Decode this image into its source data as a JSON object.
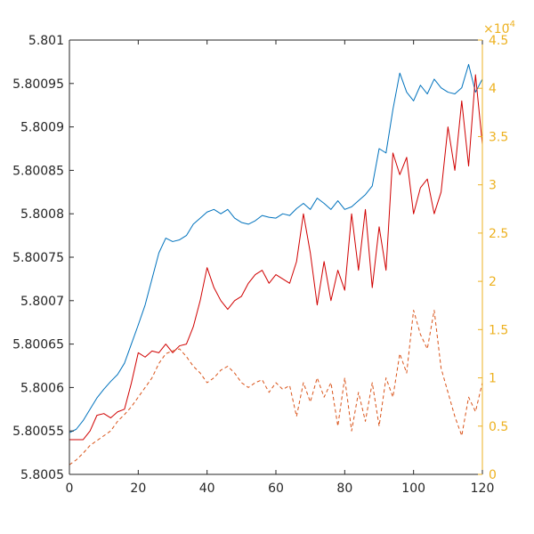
{
  "chart_data": {
    "type": "line",
    "grid": false,
    "legend": "none",
    "xlim": [
      0,
      120
    ],
    "x_ticks": [
      "0",
      "20",
      "40",
      "60",
      "80",
      "100",
      "120"
    ],
    "ylim_left": [
      5.8005,
      5.801
    ],
    "y_ticks_left": [
      "5.8005",
      "5.80055",
      "5.8006",
      "5.80065",
      "5.8007",
      "5.80075",
      "5.8008",
      "5.80085",
      "5.8009",
      "5.80095",
      "5.801"
    ],
    "ylim_right": [
      0,
      0.00045
    ],
    "y_ticks_right": [
      "0",
      "0.5",
      "1",
      "1.5",
      "2",
      "2.5",
      "3",
      "3.5",
      "4",
      "4.5"
    ],
    "right_axis_exponent": {
      "base": "×10",
      "power": "-4"
    },
    "colors": {
      "axis_left": "#262626",
      "axis_right": "#EDB120",
      "blue": "#0072BD",
      "red": "#D00000",
      "orange": "#D95319"
    },
    "series": [
      {
        "axis": "left",
        "style": "solid",
        "color": "#0072BD",
        "points": [
          [
            0,
            5.800548
          ],
          [
            2,
            5.800552
          ],
          [
            4,
            5.800562
          ],
          [
            6,
            5.800575
          ],
          [
            8,
            5.800588
          ],
          [
            10,
            5.800598
          ],
          [
            12,
            5.800607
          ],
          [
            14,
            5.800615
          ],
          [
            16,
            5.800628
          ],
          [
            18,
            5.80065
          ],
          [
            20,
            5.800672
          ],
          [
            22,
            5.800695
          ],
          [
            24,
            5.800725
          ],
          [
            26,
            5.800755
          ],
          [
            28,
            5.800772
          ],
          [
            30,
            5.800768
          ],
          [
            32,
            5.80077
          ],
          [
            34,
            5.800775
          ],
          [
            36,
            5.800788
          ],
          [
            38,
            5.800795
          ],
          [
            40,
            5.800802
          ],
          [
            42,
            5.800805
          ],
          [
            44,
            5.8008
          ],
          [
            46,
            5.800805
          ],
          [
            48,
            5.800795
          ],
          [
            50,
            5.80079
          ],
          [
            52,
            5.800788
          ],
          [
            54,
            5.800792
          ],
          [
            56,
            5.800798
          ],
          [
            58,
            5.800796
          ],
          [
            60,
            5.800795
          ],
          [
            62,
            5.8008
          ],
          [
            64,
            5.800798
          ],
          [
            66,
            5.800806
          ],
          [
            68,
            5.800812
          ],
          [
            70,
            5.800805
          ],
          [
            72,
            5.800818
          ],
          [
            74,
            5.800812
          ],
          [
            76,
            5.800805
          ],
          [
            78,
            5.800815
          ],
          [
            80,
            5.800805
          ],
          [
            82,
            5.800808
          ],
          [
            84,
            5.800815
          ],
          [
            86,
            5.800822
          ],
          [
            88,
            5.800832
          ],
          [
            90,
            5.800875
          ],
          [
            92,
            5.80087
          ],
          [
            94,
            5.80092
          ],
          [
            96,
            5.800962
          ],
          [
            98,
            5.80094
          ],
          [
            100,
            5.80093
          ],
          [
            102,
            5.800948
          ],
          [
            104,
            5.800938
          ],
          [
            106,
            5.800955
          ],
          [
            108,
            5.800945
          ],
          [
            110,
            5.80094
          ],
          [
            112,
            5.800938
          ],
          [
            114,
            5.800945
          ],
          [
            116,
            5.800972
          ],
          [
            118,
            5.80094
          ],
          [
            120,
            5.800955
          ]
        ]
      },
      {
        "axis": "left",
        "style": "solid",
        "color": "#D00000",
        "points": [
          [
            0,
            5.80054
          ],
          [
            2,
            5.80054
          ],
          [
            4,
            5.80054
          ],
          [
            6,
            5.80055
          ],
          [
            8,
            5.800568
          ],
          [
            10,
            5.80057
          ],
          [
            12,
            5.800565
          ],
          [
            14,
            5.800572
          ],
          [
            16,
            5.800575
          ],
          [
            18,
            5.800605
          ],
          [
            20,
            5.80064
          ],
          [
            22,
            5.800635
          ],
          [
            24,
            5.800642
          ],
          [
            26,
            5.80064
          ],
          [
            28,
            5.80065
          ],
          [
            30,
            5.80064
          ],
          [
            32,
            5.800648
          ],
          [
            34,
            5.80065
          ],
          [
            36,
            5.80067
          ],
          [
            38,
            5.8007
          ],
          [
            40,
            5.800738
          ],
          [
            42,
            5.800715
          ],
          [
            44,
            5.8007
          ],
          [
            46,
            5.80069
          ],
          [
            48,
            5.8007
          ],
          [
            50,
            5.800705
          ],
          [
            52,
            5.80072
          ],
          [
            54,
            5.80073
          ],
          [
            56,
            5.800735
          ],
          [
            58,
            5.80072
          ],
          [
            60,
            5.80073
          ],
          [
            62,
            5.800725
          ],
          [
            64,
            5.80072
          ],
          [
            66,
            5.800745
          ],
          [
            68,
            5.8008
          ],
          [
            70,
            5.800755
          ],
          [
            72,
            5.800695
          ],
          [
            74,
            5.800745
          ],
          [
            76,
            5.8007
          ],
          [
            78,
            5.800735
          ],
          [
            80,
            5.800712
          ],
          [
            82,
            5.8008
          ],
          [
            84,
            5.800735
          ],
          [
            86,
            5.800805
          ],
          [
            88,
            5.800715
          ],
          [
            90,
            5.800785
          ],
          [
            92,
            5.800735
          ],
          [
            94,
            5.80087
          ],
          [
            96,
            5.800845
          ],
          [
            98,
            5.800865
          ],
          [
            100,
            5.8008
          ],
          [
            102,
            5.80083
          ],
          [
            104,
            5.80084
          ],
          [
            106,
            5.8008
          ],
          [
            108,
            5.800825
          ],
          [
            110,
            5.8009
          ],
          [
            112,
            5.80085
          ],
          [
            114,
            5.80093
          ],
          [
            116,
            5.800855
          ],
          [
            118,
            5.80096
          ],
          [
            120,
            5.80088
          ]
        ]
      },
      {
        "axis": "right",
        "style": "dashed",
        "color": "#D95319",
        "points": [
          [
            0,
            1e-05
          ],
          [
            2,
            1.5e-05
          ],
          [
            4,
            2.2e-05
          ],
          [
            6,
            3e-05
          ],
          [
            8,
            3.5e-05
          ],
          [
            10,
            4e-05
          ],
          [
            12,
            4.5e-05
          ],
          [
            14,
            5.5e-05
          ],
          [
            16,
            6.2e-05
          ],
          [
            18,
            7e-05
          ],
          [
            20,
            8e-05
          ],
          [
            22,
            9e-05
          ],
          [
            24,
            0.0001
          ],
          [
            26,
            0.000115
          ],
          [
            28,
            0.000125
          ],
          [
            30,
            0.000128
          ],
          [
            32,
            0.00013
          ],
          [
            34,
            0.000122
          ],
          [
            36,
            0.000112
          ],
          [
            38,
            0.000105
          ],
          [
            40,
            9.5e-05
          ],
          [
            42,
            0.0001
          ],
          [
            44,
            0.000108
          ],
          [
            46,
            0.000112
          ],
          [
            48,
            0.000105
          ],
          [
            50,
            9.5e-05
          ],
          [
            52,
            9e-05
          ],
          [
            54,
            9.5e-05
          ],
          [
            56,
            9.8e-05
          ],
          [
            58,
            8.5e-05
          ],
          [
            60,
            9.5e-05
          ],
          [
            62,
            8.8e-05
          ],
          [
            64,
            9.2e-05
          ],
          [
            66,
            6e-05
          ],
          [
            68,
            9.5e-05
          ],
          [
            70,
            7.5e-05
          ],
          [
            72,
            0.0001
          ],
          [
            74,
            8e-05
          ],
          [
            76,
            9.5e-05
          ],
          [
            78,
            5e-05
          ],
          [
            80,
            0.0001
          ],
          [
            82,
            4.5e-05
          ],
          [
            84,
            8.5e-05
          ],
          [
            86,
            5.5e-05
          ],
          [
            88,
            9.5e-05
          ],
          [
            90,
            5e-05
          ],
          [
            92,
            0.0001
          ],
          [
            94,
            8e-05
          ],
          [
            96,
            0.000125
          ],
          [
            98,
            0.000105
          ],
          [
            100,
            0.00017
          ],
          [
            102,
            0.000145
          ],
          [
            104,
            0.00013
          ],
          [
            106,
            0.00017
          ],
          [
            108,
            0.00011
          ],
          [
            110,
            8.5e-05
          ],
          [
            112,
            6e-05
          ],
          [
            114,
            4e-05
          ],
          [
            116,
            8e-05
          ],
          [
            118,
            6.5e-05
          ],
          [
            120,
            9.5e-05
          ]
        ]
      }
    ]
  }
}
